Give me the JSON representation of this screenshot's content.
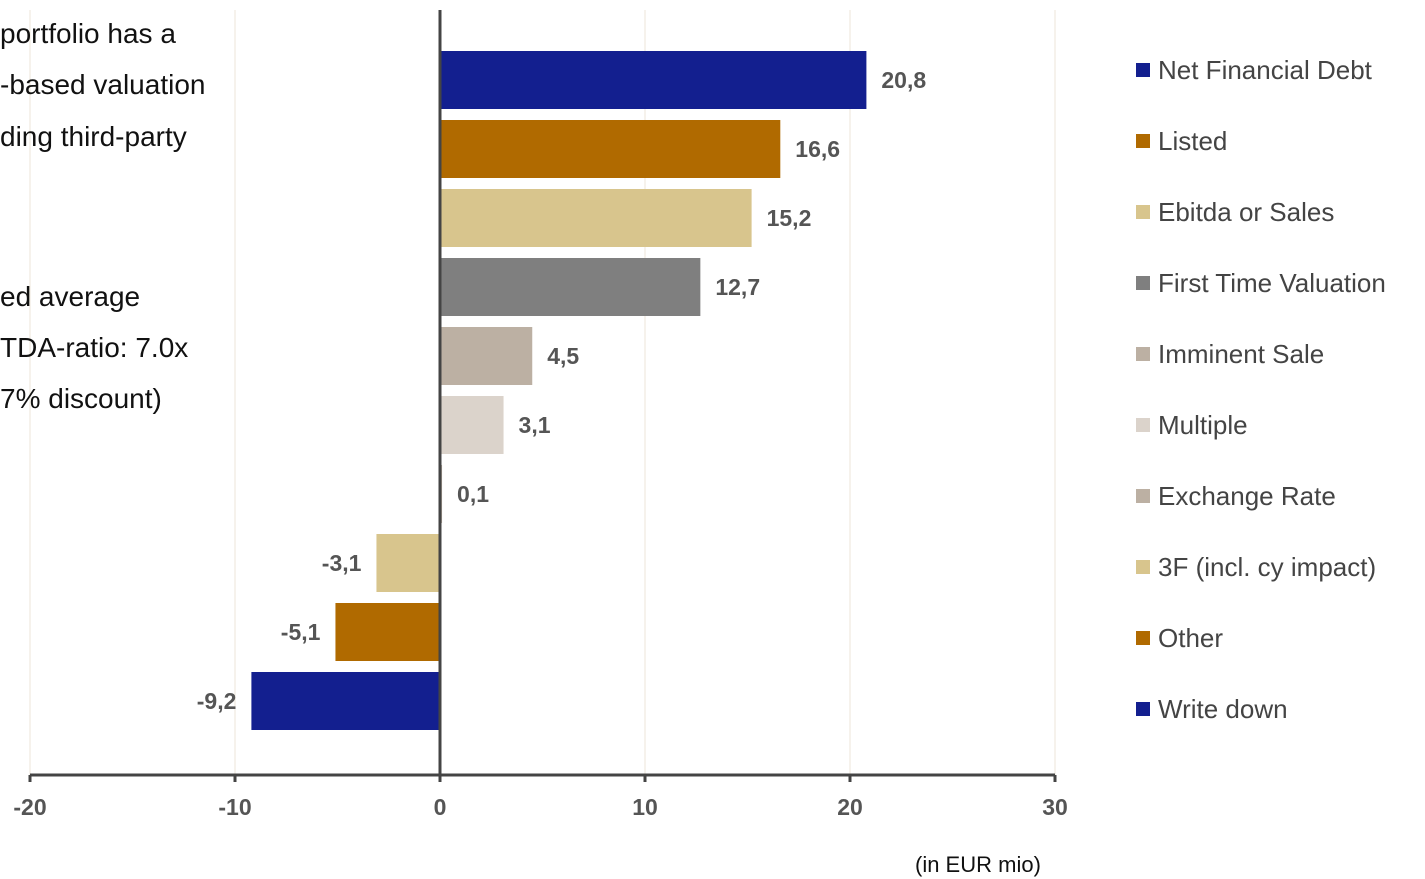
{
  "notes": {
    "lines": [
      "portfolio has a",
      "-based valuation",
      "ding third-party",
      "ed average",
      "TDA-ratio: 7.0x",
      "7% discount)"
    ]
  },
  "unit_label": "(in EUR mio)",
  "chart_data": {
    "type": "bar",
    "orientation": "horizontal",
    "categories": [
      "Net Financial Debt",
      "Listed",
      "Ebitda or Sales",
      "First Time Valuation",
      "Imminent Sale",
      "Multiple",
      "Exchange Rate",
      "3F (incl. cy impact)",
      "Other",
      "Write down"
    ],
    "values": [
      20.8,
      16.6,
      15.2,
      12.7,
      4.5,
      3.1,
      0.1,
      -3.1,
      -5.1,
      -9.2
    ],
    "data_labels": [
      "20,8",
      "16,6",
      "15,2",
      "12,7",
      "4,5",
      "3,1",
      "0,1",
      "-3,1",
      "-5,1",
      "-9,2"
    ],
    "colors": [
      "#131f8f",
      "#b06a00",
      "#d8c58d",
      "#7f7f7f",
      "#bcb0a3",
      "#dbd3cb",
      "#bcb0a3",
      "#d8c58d",
      "#b06a00",
      "#131f8f"
    ],
    "xlim": [
      -20,
      30
    ],
    "xticks": [
      -20,
      -10,
      0,
      10,
      20,
      30
    ],
    "xtick_labels": [
      "-20",
      "-10",
      "0",
      "10",
      "20",
      "30"
    ],
    "grid": "vertical",
    "legend_position": "right",
    "title": "",
    "xlabel": "",
    "ylabel": ""
  }
}
